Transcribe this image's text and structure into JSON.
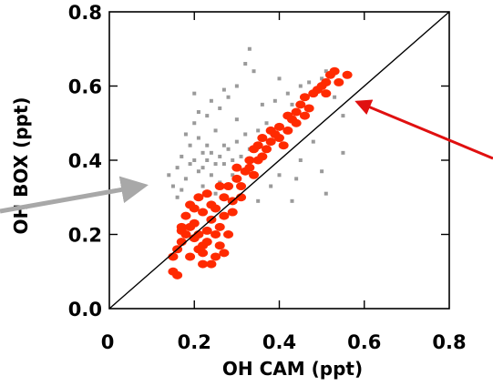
{
  "chart_data": {
    "type": "scatter",
    "xlabel": "OH CAM (ppt)",
    "ylabel": "OH BOX (ppt)",
    "xlim": [
      0,
      0.8
    ],
    "ylim": [
      0,
      0.8
    ],
    "x_ticks": [
      "0",
      "0.2",
      "0.4",
      "0.6",
      "0.8"
    ],
    "y_ticks": [
      "0.0",
      "0.2",
      "0.4",
      "0.6",
      "0.8"
    ],
    "grid": false,
    "reference_line": "1:1",
    "colors": {
      "red_series": "#ff2a00",
      "gray_series": "#9a9a9a",
      "left_arrow": "#a8a8a8",
      "right_arrow": "#e01010"
    },
    "series": [
      {
        "color": "#ff2a00",
        "marker": "large-dot",
        "points": [
          [
            0.15,
            0.1
          ],
          [
            0.16,
            0.09
          ],
          [
            0.15,
            0.14
          ],
          [
            0.16,
            0.16
          ],
          [
            0.17,
            0.18
          ],
          [
            0.18,
            0.2
          ],
          [
            0.17,
            0.21
          ],
          [
            0.19,
            0.22
          ],
          [
            0.18,
            0.25
          ],
          [
            0.2,
            0.23
          ],
          [
            0.2,
            0.19
          ],
          [
            0.21,
            0.16
          ],
          [
            0.19,
            0.14
          ],
          [
            0.22,
            0.12
          ],
          [
            0.22,
            0.15
          ],
          [
            0.21,
            0.2
          ],
          [
            0.23,
            0.21
          ],
          [
            0.22,
            0.26
          ],
          [
            0.2,
            0.27
          ],
          [
            0.21,
            0.3
          ],
          [
            0.23,
            0.31
          ],
          [
            0.24,
            0.28
          ],
          [
            0.24,
            0.24
          ],
          [
            0.23,
            0.18
          ],
          [
            0.25,
            0.14
          ],
          [
            0.24,
            0.12
          ],
          [
            0.26,
            0.17
          ],
          [
            0.25,
            0.2
          ],
          [
            0.25,
            0.27
          ],
          [
            0.26,
            0.33
          ],
          [
            0.27,
            0.3
          ],
          [
            0.27,
            0.25
          ],
          [
            0.28,
            0.2
          ],
          [
            0.27,
            0.15
          ],
          [
            0.29,
            0.26
          ],
          [
            0.28,
            0.33
          ],
          [
            0.3,
            0.35
          ],
          [
            0.31,
            0.33
          ],
          [
            0.32,
            0.37
          ],
          [
            0.33,
            0.38
          ],
          [
            0.34,
            0.36
          ],
          [
            0.35,
            0.4
          ],
          [
            0.36,
            0.41
          ],
          [
            0.37,
            0.43
          ],
          [
            0.38,
            0.45
          ],
          [
            0.39,
            0.47
          ],
          [
            0.38,
            0.48
          ],
          [
            0.4,
            0.49
          ],
          [
            0.4,
            0.46
          ],
          [
            0.41,
            0.44
          ],
          [
            0.42,
            0.48
          ],
          [
            0.43,
            0.51
          ],
          [
            0.44,
            0.53
          ],
          [
            0.45,
            0.55
          ],
          [
            0.46,
            0.52
          ],
          [
            0.47,
            0.54
          ],
          [
            0.48,
            0.58
          ],
          [
            0.49,
            0.59
          ],
          [
            0.5,
            0.6
          ],
          [
            0.51,
            0.61
          ],
          [
            0.52,
            0.63
          ],
          [
            0.53,
            0.64
          ],
          [
            0.54,
            0.61
          ],
          [
            0.56,
            0.63
          ],
          [
            0.33,
            0.4
          ],
          [
            0.34,
            0.43
          ],
          [
            0.36,
            0.46
          ],
          [
            0.31,
            0.3
          ],
          [
            0.29,
            0.29
          ],
          [
            0.44,
            0.5
          ],
          [
            0.19,
            0.28
          ],
          [
            0.17,
            0.22
          ],
          [
            0.22,
            0.17
          ],
          [
            0.26,
            0.22
          ],
          [
            0.3,
            0.38
          ],
          [
            0.35,
            0.44
          ],
          [
            0.42,
            0.52
          ],
          [
            0.46,
            0.57
          ],
          [
            0.51,
            0.58
          ]
        ]
      },
      {
        "color": "#9a9a9a",
        "marker": "small-square",
        "points": [
          [
            0.14,
            0.36
          ],
          [
            0.15,
            0.33
          ],
          [
            0.16,
            0.38
          ],
          [
            0.17,
            0.41
          ],
          [
            0.18,
            0.35
          ],
          [
            0.19,
            0.39
          ],
          [
            0.19,
            0.44
          ],
          [
            0.2,
            0.4
          ],
          [
            0.21,
            0.37
          ],
          [
            0.21,
            0.46
          ],
          [
            0.22,
            0.42
          ],
          [
            0.22,
            0.38
          ],
          [
            0.23,
            0.44
          ],
          [
            0.23,
            0.4
          ],
          [
            0.24,
            0.36
          ],
          [
            0.24,
            0.42
          ],
          [
            0.25,
            0.39
          ],
          [
            0.25,
            0.48
          ],
          [
            0.26,
            0.41
          ],
          [
            0.26,
            0.34
          ],
          [
            0.27,
            0.44
          ],
          [
            0.27,
            0.39
          ],
          [
            0.28,
            0.43
          ],
          [
            0.29,
            0.4
          ],
          [
            0.3,
            0.45
          ],
          [
            0.31,
            0.41
          ],
          [
            0.32,
            0.47
          ],
          [
            0.33,
            0.43
          ],
          [
            0.18,
            0.47
          ],
          [
            0.2,
            0.5
          ],
          [
            0.21,
            0.53
          ],
          [
            0.23,
            0.52
          ],
          [
            0.24,
            0.56
          ],
          [
            0.2,
            0.58
          ],
          [
            0.26,
            0.54
          ],
          [
            0.27,
            0.59
          ],
          [
            0.28,
            0.57
          ],
          [
            0.3,
            0.6
          ],
          [
            0.32,
            0.66
          ],
          [
            0.33,
            0.7
          ],
          [
            0.34,
            0.64
          ],
          [
            0.36,
            0.55
          ],
          [
            0.37,
            0.5
          ],
          [
            0.39,
            0.56
          ],
          [
            0.4,
            0.62
          ],
          [
            0.42,
            0.58
          ],
          [
            0.43,
            0.55
          ],
          [
            0.45,
            0.6
          ],
          [
            0.47,
            0.61
          ],
          [
            0.5,
            0.62
          ],
          [
            0.51,
            0.64
          ],
          [
            0.53,
            0.57
          ],
          [
            0.55,
            0.52
          ],
          [
            0.48,
            0.45
          ],
          [
            0.45,
            0.4
          ],
          [
            0.4,
            0.36
          ],
          [
            0.38,
            0.33
          ],
          [
            0.44,
            0.35
          ],
          [
            0.5,
            0.37
          ],
          [
            0.51,
            0.31
          ],
          [
            0.55,
            0.42
          ],
          [
            0.43,
            0.29
          ],
          [
            0.35,
            0.29
          ],
          [
            0.29,
            0.36
          ],
          [
            0.25,
            0.31
          ],
          [
            0.22,
            0.33
          ],
          [
            0.17,
            0.32
          ],
          [
            0.16,
            0.3
          ],
          [
            0.3,
            0.51
          ],
          [
            0.35,
            0.48
          ]
        ]
      }
    ]
  }
}
